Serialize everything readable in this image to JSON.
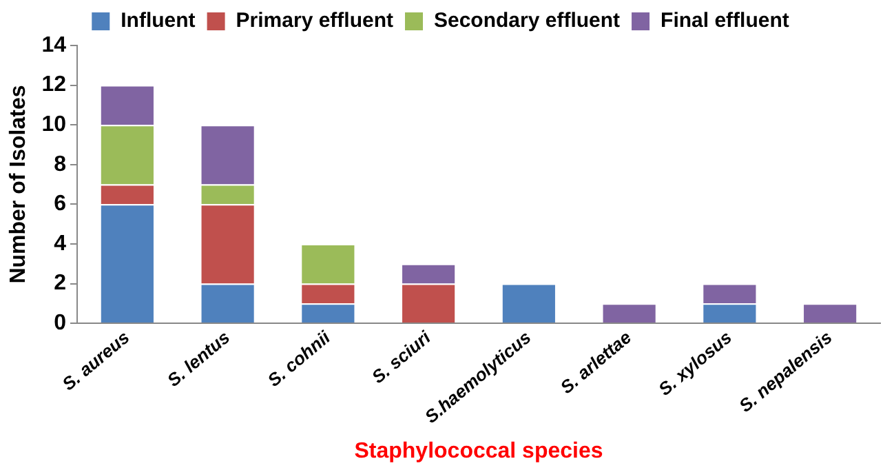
{
  "chart_data": {
    "type": "bar",
    "stacked": true,
    "xlabel": "Staphylococcal species",
    "ylabel": "Number of Isolates",
    "categories": [
      "S. aureus",
      "S. lentus",
      "S. cohnii",
      "S. sciuri",
      "S.haemolyticus",
      "S. arlettae",
      "S. xylosus",
      "S. nepalensis"
    ],
    "series": [
      {
        "name": "Influent",
        "color": "#4f81bd",
        "values": [
          6,
          2,
          1,
          0,
          2,
          0,
          1,
          0
        ]
      },
      {
        "name": "Primary effluent",
        "color": "#c0504d",
        "values": [
          1,
          4,
          1,
          2,
          0,
          0,
          0,
          0
        ]
      },
      {
        "name": "Secondary effluent",
        "color": "#9bbb59",
        "values": [
          3,
          1,
          2,
          0,
          0,
          0,
          0,
          0
        ]
      },
      {
        "name": "Final effluent",
        "color": "#8064a2",
        "values": [
          2,
          3,
          0,
          1,
          0,
          1,
          1,
          1
        ]
      }
    ],
    "ylim": [
      0,
      14
    ],
    "yticks": [
      0,
      2,
      4,
      6,
      8,
      10,
      12,
      14
    ],
    "grid": false,
    "legend": "top"
  }
}
